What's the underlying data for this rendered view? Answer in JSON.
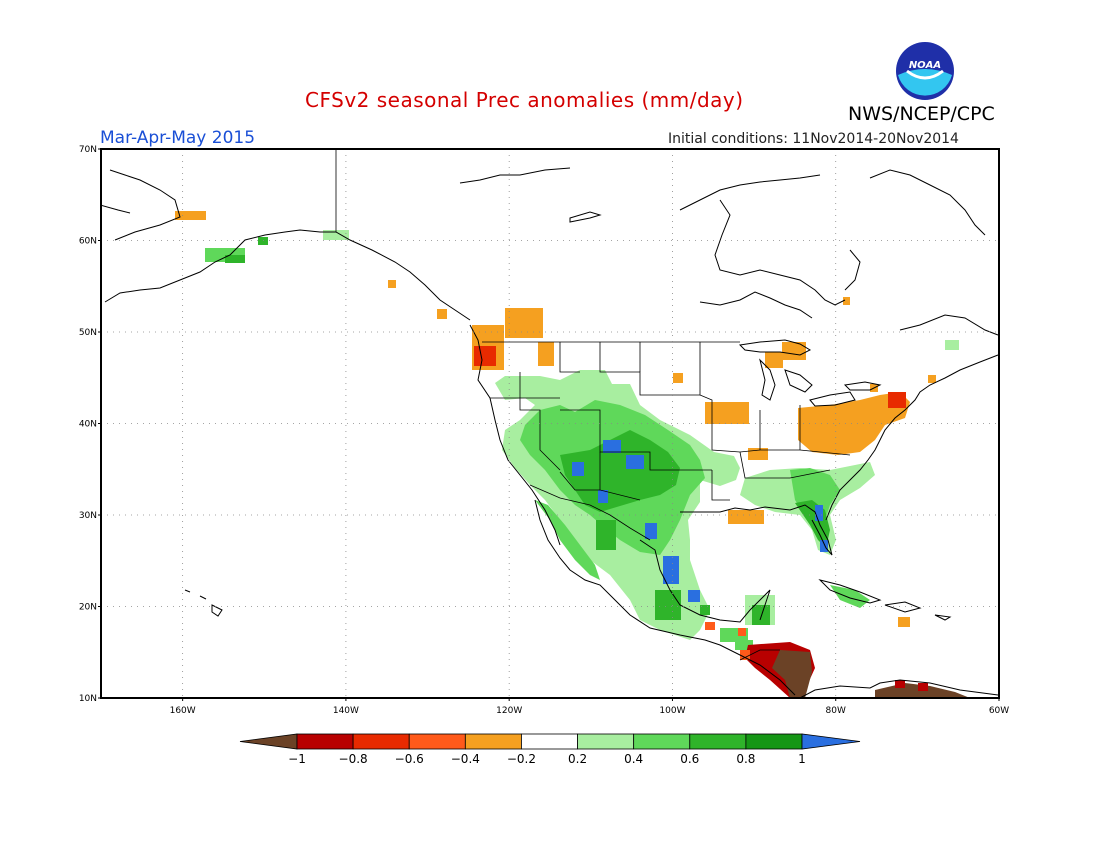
{
  "title": "CFSv2 seasonal Prec anomalies (mm/day)",
  "season": "Mar-Apr-May 2015",
  "initial_conditions": "Initial conditions: 11Nov2014-20Nov2014",
  "agency": "NWS/NCEP/CPC",
  "logo_text": "NOAA",
  "lat_labels": [
    "70N",
    "60N",
    "50N",
    "40N",
    "30N",
    "20N",
    "10N"
  ],
  "lon_labels": [
    "160W",
    "140W",
    "120W",
    "100W",
    "80W",
    "60W"
  ],
  "colorbar": {
    "labels": [
      "−1",
      "−0.8",
      "−0.6",
      "−0.4",
      "−0.2",
      "0.2",
      "0.4",
      "0.6",
      "0.8",
      "1"
    ],
    "colors": [
      "#6b4226",
      "#b80000",
      "#e82a00",
      "#ff5a1a",
      "#f5a020",
      "#ffffff",
      "#a8eea0",
      "#5fd85a",
      "#2fb42a",
      "#159615",
      "#2a6fe0"
    ]
  },
  "anomaly_colors": {
    "orange": "#f5a020",
    "red": "#e82a00",
    "darkred": "#b80000",
    "brown": "#6b4226",
    "lightgreen": "#a8eea0",
    "green": "#5fd85a",
    "darkgreen": "#2fb42a",
    "blue": "#2a6fe0"
  }
}
